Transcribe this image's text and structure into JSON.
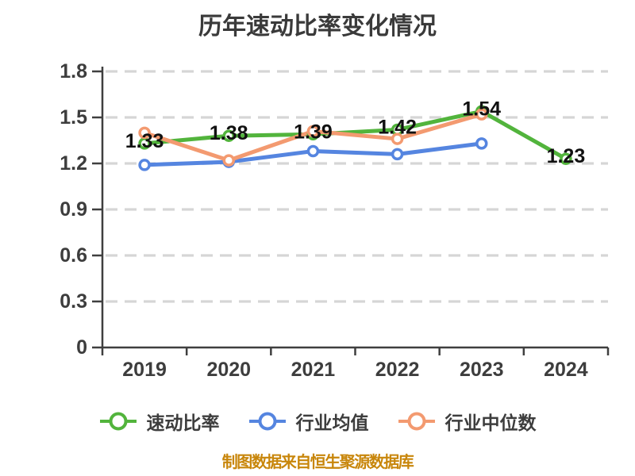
{
  "title": "历年速动比率变化情况",
  "caption": "制图数据来自恒生聚源数据库",
  "colors": {
    "axis": "#3f3f3f",
    "grid": "#d6d6d6",
    "tick_text": "#3d3d3d",
    "data_label": "#111111",
    "marker_fill": "#ffffff",
    "title_text": "#3a3a3a",
    "caption_text": "#c8860b"
  },
  "chart_data": {
    "type": "line",
    "title": "历年速动比率变化情况",
    "categories": [
      "2019",
      "2020",
      "2021",
      "2022",
      "2023",
      "2024"
    ],
    "series": [
      {
        "name": "速动比率",
        "color": "#52b43c",
        "values": [
          1.33,
          1.38,
          1.39,
          1.42,
          1.54,
          1.23
        ],
        "labeled": true
      },
      {
        "name": "行业均值",
        "color": "#5585e0",
        "values": [
          1.19,
          1.21,
          1.28,
          1.26,
          1.33,
          null
        ],
        "labeled": false
      },
      {
        "name": "行业中位数",
        "color": "#f39a70",
        "values": [
          1.4,
          1.22,
          1.41,
          1.36,
          1.52,
          null
        ],
        "labeled": false
      }
    ],
    "ylim": [
      0,
      1.8
    ],
    "yticks": [
      0,
      0.3,
      0.6,
      0.9,
      1.2,
      1.5,
      1.8
    ],
    "grid": "dashed-horizontal",
    "legend_position": "bottom",
    "xlabel": "",
    "ylabel": ""
  }
}
